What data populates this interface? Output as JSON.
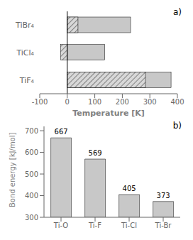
{
  "chart_data": [
    {
      "type": "bar",
      "orientation": "horizontal",
      "categories": [
        "TiBr₄",
        "TiCl₄",
        "TiF₄"
      ],
      "series": [
        {
          "color": "#c8c8c8",
          "values": [
            230,
            136,
            377
          ]
        },
        {
          "color": "#d8d8d8",
          "values": [
            39,
            -24,
            284
          ]
        }
      ],
      "xlabel": "Temperature [K]",
      "xlim": [
        -100,
        400
      ],
      "xticks": [
        -100,
        0,
        100,
        200,
        300,
        400
      ],
      "annotations": [
        "a)"
      ]
    },
    {
      "type": "bar",
      "categories": [
        "Ti-O",
        "Ti-F",
        "Ti-Cl",
        "Ti-Br"
      ],
      "values": [
        667,
        569,
        405,
        373
      ],
      "color": "#c8c8c8",
      "ylabel": "Bond energy [kJ/mol]",
      "ylim": [
        300,
        720
      ],
      "yticks": [
        300,
        400,
        500,
        600,
        700
      ],
      "data_labels": true,
      "annotations": [
        "b)"
      ]
    }
  ]
}
